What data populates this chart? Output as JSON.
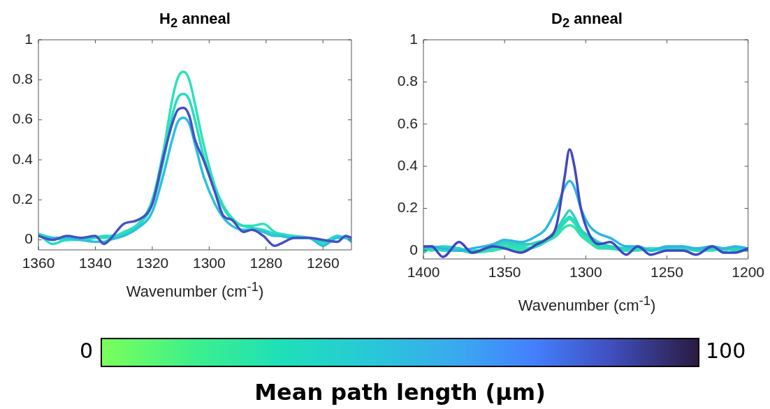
{
  "chart_data": [
    {
      "type": "line",
      "title": "H$_{2}$ anneal",
      "xlabel": "Wavenumber (cm$^{-1}$)",
      "xlim": [
        1360,
        1250
      ],
      "xticks": [
        1360,
        1340,
        1320,
        1300,
        1280,
        1260
      ],
      "ylim": [
        -0.05,
        1
      ],
      "yticks": [
        0,
        0.2,
        0.4,
        0.6,
        0.8,
        1
      ],
      "grid": false,
      "legend": false,
      "marker": "none",
      "line_style": "solid",
      "clabel": "Mean path length (µm)",
      "clim": [
        0,
        100
      ],
      "cticks": [
        0,
        100
      ],
      "x": [
        1360,
        1355,
        1350,
        1345,
        1340,
        1337,
        1335,
        1330,
        1325,
        1320,
        1316,
        1313,
        1311,
        1309,
        1307,
        1305,
        1302,
        1298,
        1295,
        1292,
        1288,
        1285,
        1281,
        1277,
        1275,
        1270,
        1265,
        1260,
        1255,
        1252,
        1250
      ],
      "series": [
        {
          "color": "#4450c4",
          "values": [
            0.02,
            0,
            0.02,
            0.01,
            0.02,
            -0.02,
            0,
            0.08,
            0.1,
            0.18,
            0.42,
            0.58,
            0.65,
            0.66,
            0.62,
            0.5,
            0.4,
            0.24,
            0.12,
            0.1,
            0.04,
            0.05,
            0.02,
            -0.03,
            -0.02,
            0.01,
            0.01,
            0,
            -0.01,
            0.02,
            0.01
          ]
        },
        {
          "color": "#2cbfe0",
          "values": [
            0.02,
            0.01,
            0.01,
            0,
            -0.01,
            -0.01,
            0,
            0.02,
            0.06,
            0.14,
            0.33,
            0.5,
            0.59,
            0.61,
            0.58,
            0.48,
            0.32,
            0.18,
            0.11,
            0.07,
            0.05,
            0.05,
            0.04,
            0.02,
            0.02,
            0.01,
            0.01,
            -0.03,
            0.01,
            0.01,
            -0.01
          ]
        },
        {
          "color": "#27dcc0",
          "values": [
            0.03,
            -0.02,
            0,
            0,
            0.01,
            0.02,
            0.02,
            0.03,
            0.07,
            0.18,
            0.4,
            0.62,
            0.71,
            0.73,
            0.7,
            0.6,
            0.42,
            0.25,
            0.16,
            0.1,
            0.07,
            0.06,
            0.05,
            0.03,
            0.02,
            0.01,
            0.01,
            -0.01,
            0.02,
            0.01,
            0
          ]
        },
        {
          "color": "#2fe0b8",
          "values": [
            0.03,
            0.01,
            0,
            0.01,
            0.01,
            0.01,
            0.01,
            0.04,
            0.08,
            0.2,
            0.45,
            0.7,
            0.81,
            0.84,
            0.8,
            0.68,
            0.48,
            0.27,
            0.17,
            0.11,
            0.07,
            0.07,
            0.08,
            0.04,
            0.03,
            0.02,
            0.01,
            -0.02,
            0.02,
            0.01,
            0
          ]
        }
      ]
    },
    {
      "type": "line",
      "title": "D$_{2}$ anneal",
      "xlabel": "Wavenumber (cm$^{-1}$)",
      "xlim": [
        1400,
        1200
      ],
      "xticks": [
        1400,
        1350,
        1300,
        1250,
        1200
      ],
      "ylim": [
        -0.04,
        1
      ],
      "yticks": [
        0,
        0.2,
        0.4,
        0.6,
        0.8,
        1
      ],
      "grid": false,
      "legend": false,
      "marker": "none",
      "line_style": "solid",
      "x": [
        1400,
        1395,
        1388,
        1378,
        1370,
        1357,
        1350,
        1340,
        1330,
        1325,
        1318,
        1313,
        1310,
        1307,
        1303,
        1298,
        1292,
        1285,
        1275,
        1268,
        1260,
        1250,
        1240,
        1232,
        1222,
        1215,
        1208,
        1200
      ],
      "series": [
        {
          "color": "#4046c4",
          "values": [
            0.02,
            0.02,
            -0.03,
            0.04,
            -0.01,
            0.02,
            0.01,
            -0.01,
            0.03,
            0.05,
            0.12,
            0.35,
            0.48,
            0.4,
            0.2,
            0.08,
            0.03,
            0.04,
            -0.02,
            0.02,
            -0.02,
            0,
            0,
            -0.02,
            0.02,
            -0.01,
            -0.01,
            0.01
          ]
        },
        {
          "color": "#2ab8e4",
          "values": [
            0.01,
            0.02,
            0.01,
            0,
            0.01,
            0.03,
            0.05,
            0.04,
            0.07,
            0.1,
            0.2,
            0.3,
            0.33,
            0.3,
            0.2,
            0.12,
            0.08,
            0.06,
            0.02,
            0.02,
            0,
            0.02,
            0.02,
            0.01,
            0.02,
            0.01,
            0.02,
            0.01
          ]
        },
        {
          "color": "#2fd0c0",
          "values": [
            0,
            0.01,
            0.02,
            0.01,
            -0.01,
            0.02,
            0.04,
            0.03,
            0.03,
            0.05,
            0.1,
            0.16,
            0.19,
            0.16,
            0.1,
            0.07,
            0.04,
            0.02,
            0.01,
            0.02,
            0,
            0.01,
            0.01,
            0,
            0.01,
            0.01,
            0.01,
            0
          ]
        },
        {
          "color": "#2adcb8",
          "values": [
            -0.01,
            0.01,
            0,
            0,
            0,
            0.01,
            0.03,
            0.02,
            0.04,
            0.05,
            0.09,
            0.14,
            0.16,
            0.14,
            0.09,
            0.06,
            0.02,
            0.01,
            0,
            0.01,
            0,
            0.01,
            0.01,
            0.01,
            0.01,
            0.01,
            0,
            0.01
          ]
        },
        {
          "color": "#30e0b0",
          "values": [
            0.01,
            0,
            0.01,
            0.01,
            -0.01,
            0.02,
            0.02,
            0.01,
            0.02,
            0.04,
            0.08,
            0.13,
            0.15,
            0.13,
            0.08,
            0.05,
            0.02,
            0.02,
            0.01,
            0.01,
            0.01,
            0.01,
            0,
            0.01,
            0.01,
            0,
            0.01,
            0
          ]
        },
        {
          "color": "#34e4a8",
          "values": [
            0,
            0.01,
            0,
            0,
            -0.01,
            0,
            0.01,
            0,
            0.02,
            0.04,
            0.07,
            0.11,
            0.12,
            0.11,
            0.07,
            0.04,
            0.01,
            0.01,
            0,
            0,
            0.01,
            0.01,
            0.01,
            0,
            0,
            0.01,
            0,
            0
          ]
        }
      ]
    }
  ]
}
